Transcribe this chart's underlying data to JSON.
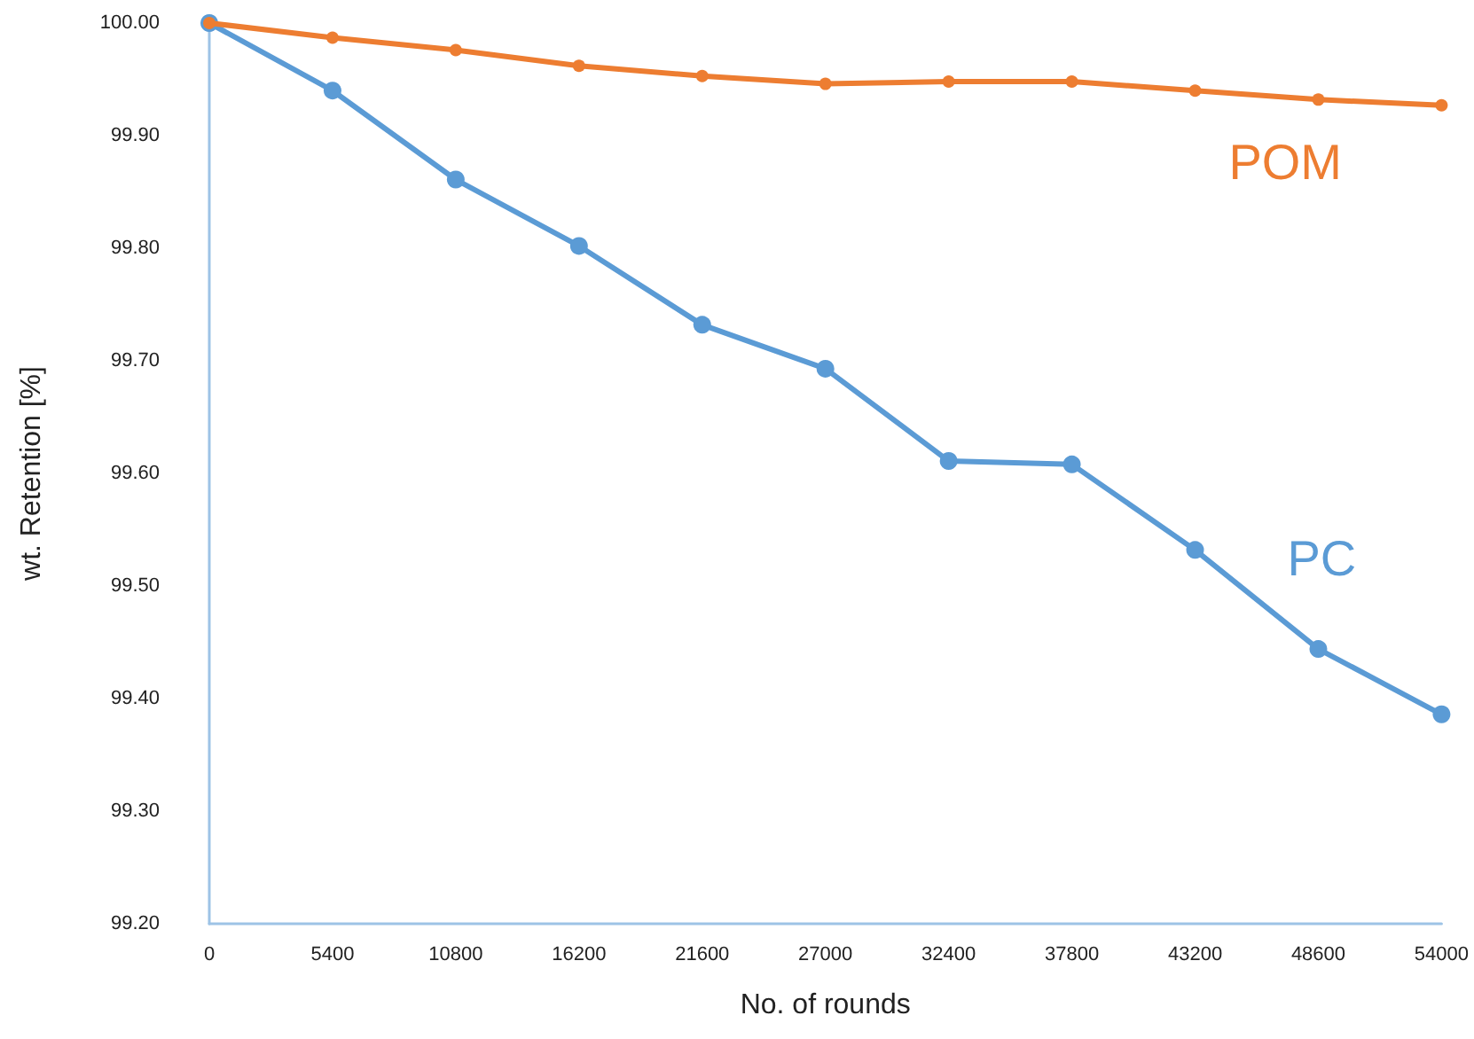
{
  "chart_data": {
    "type": "line",
    "xlabel": "No. of rounds",
    "ylabel": "wt. Retention [%]",
    "x": [
      0,
      5400,
      10800,
      16200,
      21600,
      27000,
      32400,
      37800,
      43200,
      48600,
      54000
    ],
    "series": [
      {
        "name": "POM",
        "color": "#ed7d31",
        "values": [
          100.0,
          99.987,
          99.976,
          99.962,
          99.953,
          99.946,
          99.948,
          99.948,
          99.94,
          99.932,
          99.927
        ]
      },
      {
        "name": "PC",
        "color": "#5b9bd5",
        "values": [
          100.0,
          99.94,
          99.861,
          99.802,
          99.732,
          99.693,
          99.611,
          99.608,
          99.532,
          99.444,
          99.386
        ]
      }
    ],
    "xlim": [
      0,
      54000
    ],
    "xticks": [
      0,
      5400,
      10800,
      16200,
      21600,
      27000,
      32400,
      37800,
      43200,
      48600,
      54000
    ],
    "ylim": [
      99.2,
      100.0
    ],
    "yticks": [
      {
        "value": 99.2,
        "label": "99.20"
      },
      {
        "value": 99.3,
        "label": "99.30"
      },
      {
        "value": 99.4,
        "label": "99.40"
      },
      {
        "value": 99.5,
        "label": "99.50"
      },
      {
        "value": 99.6,
        "label": "99.60"
      },
      {
        "value": 99.7,
        "label": "99.70"
      },
      {
        "value": 99.8,
        "label": "99.80"
      },
      {
        "value": 99.9,
        "label": "99.90"
      },
      {
        "value": 100.0,
        "label": "100.00"
      }
    ],
    "grid": false,
    "legend": false,
    "marker": "circle",
    "line_style": "solid"
  }
}
